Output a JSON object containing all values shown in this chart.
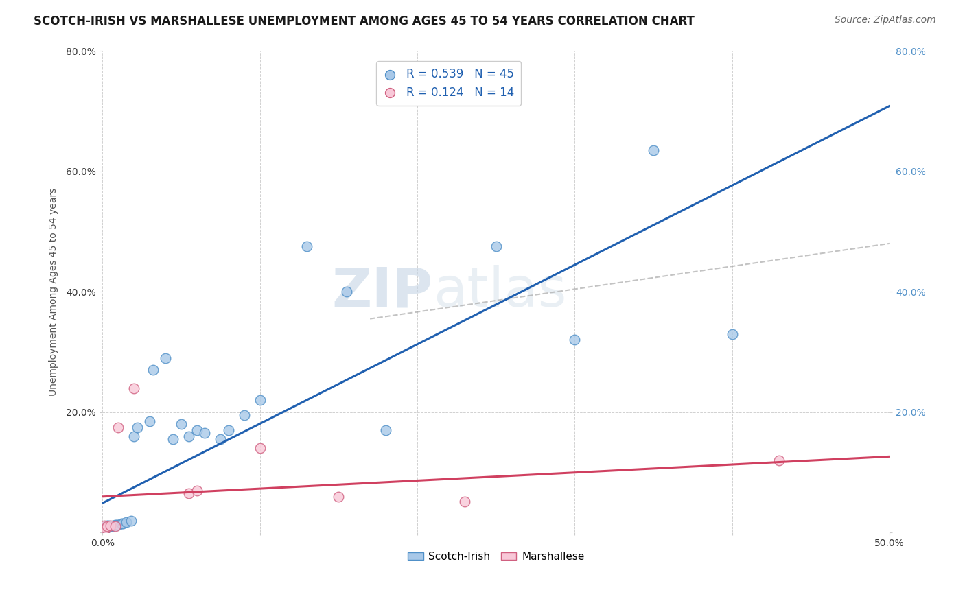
{
  "title": "SCOTCH-IRISH VS MARSHALLESE UNEMPLOYMENT AMONG AGES 45 TO 54 YEARS CORRELATION CHART",
  "source": "Source: ZipAtlas.com",
  "xlabel": "",
  "ylabel": "Unemployment Among Ages 45 to 54 years",
  "xlim": [
    0.0,
    0.5
  ],
  "ylim": [
    0.0,
    0.8
  ],
  "xticks": [
    0.0,
    0.1,
    0.2,
    0.3,
    0.4,
    0.5
  ],
  "yticks": [
    0.0,
    0.2,
    0.4,
    0.6,
    0.8
  ],
  "ytick_labels_left": [
    "",
    "20.0%",
    "40.0%",
    "60.0%",
    "80.0%"
  ],
  "ytick_labels_right": [
    "",
    "20.0%",
    "40.0%",
    "60.0%",
    "80.0%"
  ],
  "xtick_labels": [
    "0.0%",
    "",
    "",
    "",
    "",
    "50.0%"
  ],
  "background_color": "#ffffff",
  "grid_color": "#cccccc",
  "scotch_irish": {
    "x": [
      0.001,
      0.001,
      0.001,
      0.002,
      0.002,
      0.002,
      0.002,
      0.003,
      0.003,
      0.003,
      0.004,
      0.004,
      0.005,
      0.005,
      0.006,
      0.007,
      0.008,
      0.008,
      0.009,
      0.01,
      0.012,
      0.013,
      0.015,
      0.018,
      0.02,
      0.022,
      0.03,
      0.032,
      0.04,
      0.045,
      0.05,
      0.055,
      0.06,
      0.065,
      0.075,
      0.08,
      0.09,
      0.1,
      0.13,
      0.155,
      0.18,
      0.25,
      0.3,
      0.35,
      0.4
    ],
    "y": [
      0.005,
      0.007,
      0.008,
      0.007,
      0.008,
      0.009,
      0.01,
      0.008,
      0.01,
      0.012,
      0.01,
      0.012,
      0.01,
      0.011,
      0.011,
      0.012,
      0.012,
      0.013,
      0.013,
      0.013,
      0.015,
      0.015,
      0.017,
      0.019,
      0.16,
      0.175,
      0.185,
      0.27,
      0.29,
      0.155,
      0.18,
      0.16,
      0.17,
      0.165,
      0.155,
      0.17,
      0.195,
      0.22,
      0.475,
      0.4,
      0.17,
      0.475,
      0.32,
      0.635,
      0.33
    ],
    "color": "#a8c8e8",
    "edge_color": "#5090c8",
    "R": 0.539,
    "N": 45,
    "line_color": "#2060b0"
  },
  "marshallese": {
    "x": [
      0.001,
      0.001,
      0.002,
      0.003,
      0.005,
      0.008,
      0.01,
      0.02,
      0.055,
      0.06,
      0.1,
      0.15,
      0.23,
      0.43
    ],
    "y": [
      0.005,
      0.012,
      0.007,
      0.01,
      0.012,
      0.01,
      0.175,
      0.24,
      0.065,
      0.07,
      0.14,
      0.06,
      0.052,
      0.12
    ],
    "color": "#f8c8d8",
    "edge_color": "#d06080",
    "R": 0.124,
    "N": 14,
    "line_color": "#d04060"
  },
  "ref_line": {
    "x_start": 0.17,
    "x_end": 0.5,
    "y_start": 0.355,
    "y_end": 0.48,
    "color": "#aaaaaa",
    "linestyle": "--",
    "linewidth": 1.5
  },
  "title_fontsize": 12,
  "axis_label_fontsize": 10,
  "tick_fontsize": 10,
  "source_fontsize": 10,
  "watermark": "ZIPatlas",
  "watermark_color": "#ccd8e8"
}
